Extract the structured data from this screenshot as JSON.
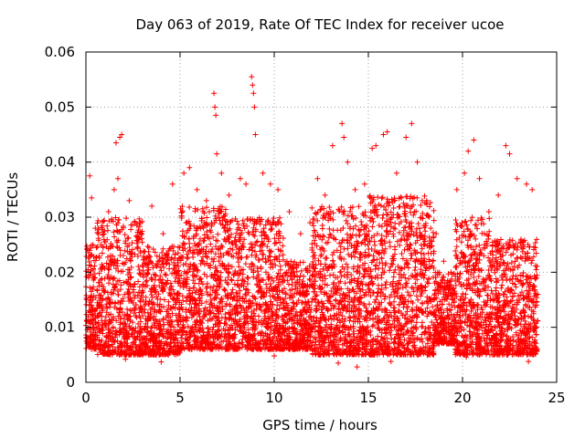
{
  "chart_data": {
    "type": "scatter",
    "title": "Day 063 of 2019, Rate Of TEC Index for receiver ucoe",
    "xlabel": "GPS time / hours",
    "ylabel": "ROTI / TECUs",
    "xlim": [
      0,
      25
    ],
    "ylim": [
      0,
      0.06
    ],
    "xticks": [
      "0",
      "5",
      "10",
      "15",
      "20",
      "25"
    ],
    "yticks": [
      "0",
      "0.01",
      "0.02",
      "0.03",
      "0.04",
      "0.05",
      "0.06"
    ],
    "grid": true,
    "marker": "+",
    "series": [
      {
        "name": "ROTI",
        "color": "#ff0000",
        "points": [
          [
            0.2,
            0.0375
          ],
          [
            0.3,
            0.0335
          ],
          [
            0.5,
            0.028
          ],
          [
            0.8,
            0.025
          ],
          [
            1.2,
            0.031
          ],
          [
            1.5,
            0.035
          ],
          [
            1.6,
            0.0435
          ],
          [
            1.8,
            0.0445
          ],
          [
            1.9,
            0.045
          ],
          [
            1.7,
            0.037
          ],
          [
            2.3,
            0.033
          ],
          [
            2.9,
            0.029
          ],
          [
            3.5,
            0.032
          ],
          [
            4.1,
            0.027
          ],
          [
            4.6,
            0.036
          ],
          [
            5.2,
            0.038
          ],
          [
            5.5,
            0.039
          ],
          [
            5.9,
            0.035
          ],
          [
            6.4,
            0.033
          ],
          [
            6.8,
            0.0525
          ],
          [
            6.85,
            0.05
          ],
          [
            6.9,
            0.0485
          ],
          [
            6.95,
            0.0415
          ],
          [
            7.2,
            0.038
          ],
          [
            7.6,
            0.034
          ],
          [
            8.2,
            0.037
          ],
          [
            8.5,
            0.036
          ],
          [
            8.8,
            0.0555
          ],
          [
            8.85,
            0.054
          ],
          [
            8.9,
            0.0525
          ],
          [
            8.95,
            0.05
          ],
          [
            9.0,
            0.045
          ],
          [
            9.4,
            0.038
          ],
          [
            9.8,
            0.036
          ],
          [
            10.2,
            0.035
          ],
          [
            10.8,
            0.031
          ],
          [
            11.4,
            0.027
          ],
          [
            11.9,
            0.029
          ],
          [
            12.3,
            0.037
          ],
          [
            12.7,
            0.034
          ],
          [
            13.1,
            0.043
          ],
          [
            13.6,
            0.047
          ],
          [
            13.7,
            0.0445
          ],
          [
            13.9,
            0.04
          ],
          [
            14.3,
            0.035
          ],
          [
            14.8,
            0.036
          ],
          [
            15.2,
            0.0425
          ],
          [
            15.4,
            0.043
          ],
          [
            15.8,
            0.045
          ],
          [
            16.0,
            0.0455
          ],
          [
            16.5,
            0.038
          ],
          [
            17.0,
            0.0445
          ],
          [
            17.3,
            0.047
          ],
          [
            17.6,
            0.04
          ],
          [
            18.1,
            0.033
          ],
          [
            18.6,
            0.027
          ],
          [
            19.0,
            0.022
          ],
          [
            19.7,
            0.035
          ],
          [
            20.1,
            0.038
          ],
          [
            20.3,
            0.042
          ],
          [
            20.6,
            0.044
          ],
          [
            20.9,
            0.037
          ],
          [
            21.4,
            0.031
          ],
          [
            21.9,
            0.034
          ],
          [
            22.3,
            0.043
          ],
          [
            22.5,
            0.0415
          ],
          [
            22.9,
            0.037
          ],
          [
            23.4,
            0.036
          ],
          [
            23.7,
            0.035
          ],
          [
            24.0,
            0.016
          ],
          [
            10.0,
            0.0048
          ],
          [
            13.4,
            0.0035
          ],
          [
            14.4,
            0.0028
          ],
          [
            16.2,
            0.0038
          ],
          [
            23.5,
            0.0038
          ],
          [
            2.1,
            0.0042
          ],
          [
            4.0,
            0.0037
          ],
          [
            20.2,
            0.0046
          ]
        ],
        "density_bands": [
          {
            "from": 0.0,
            "to": 0.6,
            "min": 0.006,
            "max": 0.025
          },
          {
            "from": 0.6,
            "to": 3.0,
            "min": 0.005,
            "max": 0.03
          },
          {
            "from": 3.0,
            "to": 5.0,
            "min": 0.005,
            "max": 0.025
          },
          {
            "from": 5.0,
            "to": 7.5,
            "min": 0.006,
            "max": 0.032
          },
          {
            "from": 7.5,
            "to": 10.5,
            "min": 0.006,
            "max": 0.03
          },
          {
            "from": 10.5,
            "to": 12.0,
            "min": 0.006,
            "max": 0.022
          },
          {
            "from": 12.0,
            "to": 15.0,
            "min": 0.005,
            "max": 0.032
          },
          {
            "from": 15.0,
            "to": 18.5,
            "min": 0.005,
            "max": 0.034
          },
          {
            "from": 18.5,
            "to": 19.6,
            "min": 0.007,
            "max": 0.02
          },
          {
            "from": 19.6,
            "to": 21.5,
            "min": 0.005,
            "max": 0.03
          },
          {
            "from": 21.5,
            "to": 24.0,
            "min": 0.005,
            "max": 0.026
          }
        ]
      }
    ]
  }
}
